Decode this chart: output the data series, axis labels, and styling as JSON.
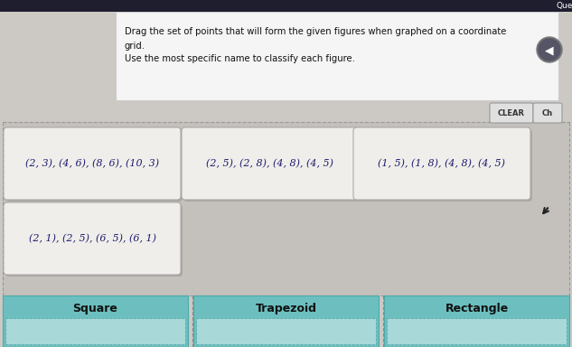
{
  "title_line1": "Drag the set of points that will form the given figures when graphed on a coordinate",
  "title_line2": "grid.",
  "title_line3": "Use the most specific name to classify each figure.",
  "que_label": "Que",
  "clear_btn": "CLEAR",
  "ch_btn": "Ch",
  "drag_cards": [
    "(2, 3), (4, 6), (8, 6), (10, 3)",
    "(2, 5), (2, 8), (4, 8), (4, 5)",
    "(1, 5), (1, 8), (4, 8), (4, 5)"
  ],
  "drag_card4": "(2, 1), (2, 5), (6, 5), (6, 1)",
  "drop_zones": [
    "Square",
    "Trapezoid",
    "Rectangle"
  ],
  "bg_color": "#ccc9c4",
  "card_bg": "#f0eeea",
  "card_border": "#aaaaaa",
  "drop_bg": "#6dbfbf",
  "drop_text_color": "#111111",
  "header_bg": "#f5f5f5",
  "header_border": "#cccccc",
  "dashed_area_bg": "#c4c0bb",
  "top_bar_color": "#1e1e2e",
  "card_text_color": "#1a1a6e",
  "card_shadow": "#aaa8a4",
  "drop_inner_bg": "#a8d8d8"
}
